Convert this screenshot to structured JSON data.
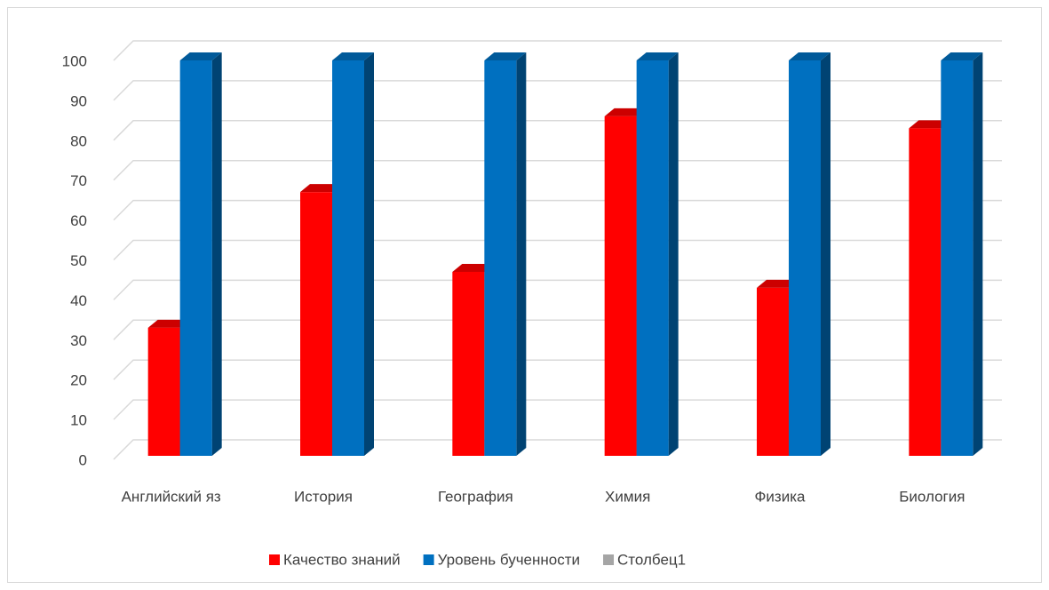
{
  "chart_data": {
    "type": "bar3d",
    "categories": [
      "Английский яз",
      "История",
      "География",
      "Химия",
      "Физика",
      "Биология"
    ],
    "series": [
      {
        "name": "Качество знаний",
        "color": "#ff0000",
        "values": [
          33,
          67,
          47,
          86,
          43,
          83
        ]
      },
      {
        "name": "Уровень бученности",
        "color": "#0070c0",
        "values": [
          100,
          100,
          100,
          100,
          100,
          100
        ]
      },
      {
        "name": "Столбец1",
        "color": "#a5a5a5",
        "values": [
          null,
          null,
          null,
          null,
          null,
          null
        ]
      }
    ],
    "ylim": [
      0,
      100
    ],
    "yticks": [
      0,
      10,
      20,
      30,
      40,
      50,
      60,
      70,
      80,
      90,
      100
    ],
    "grid": true,
    "legend": "bottom"
  }
}
